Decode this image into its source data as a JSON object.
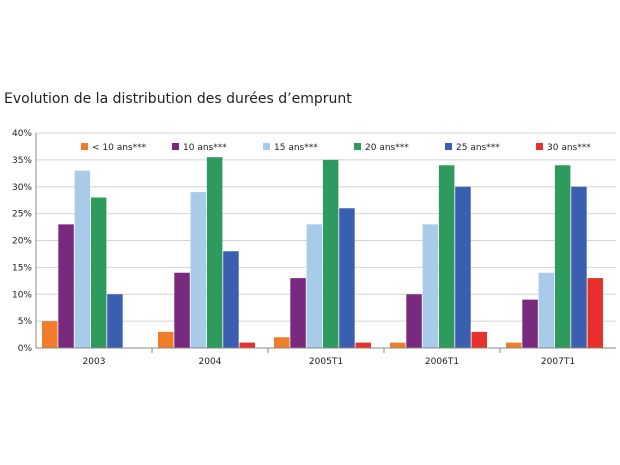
{
  "chart_data": {
    "type": "bar",
    "title": "Evolution de la distribution des durées d’emprunt",
    "categories": [
      "2003",
      "2004",
      "2005T1",
      "2006T1",
      "2007T1"
    ],
    "series": [
      {
        "name": "< 10 ans***",
        "color": "#f07d2a",
        "values": [
          5,
          3,
          2,
          1,
          1
        ]
      },
      {
        "name": "10 ans***",
        "color": "#7a2a7e",
        "values": [
          23,
          14,
          13,
          10,
          9
        ]
      },
      {
        "name": "15 ans***",
        "color": "#a8cbea",
        "values": [
          33,
          29,
          23,
          23,
          14
        ]
      },
      {
        "name": "20 ans***",
        "color": "#2e9a5e",
        "values": [
          28,
          35.5,
          35,
          34,
          34
        ]
      },
      {
        "name": "25 ans***",
        "color": "#3b5fb0",
        "values": [
          10,
          18,
          26,
          30,
          30
        ]
      },
      {
        "name": "30 ans***",
        "color": "#e8302c",
        "values": [
          0,
          1,
          1,
          3,
          13
        ]
      }
    ],
    "ylim": [
      0,
      40
    ],
    "yticks": [
      "0%",
      "5%",
      "10%",
      "15%",
      "20%",
      "25%",
      "30%",
      "35%",
      "40%"
    ],
    "grid": true,
    "legend_position": "top"
  }
}
